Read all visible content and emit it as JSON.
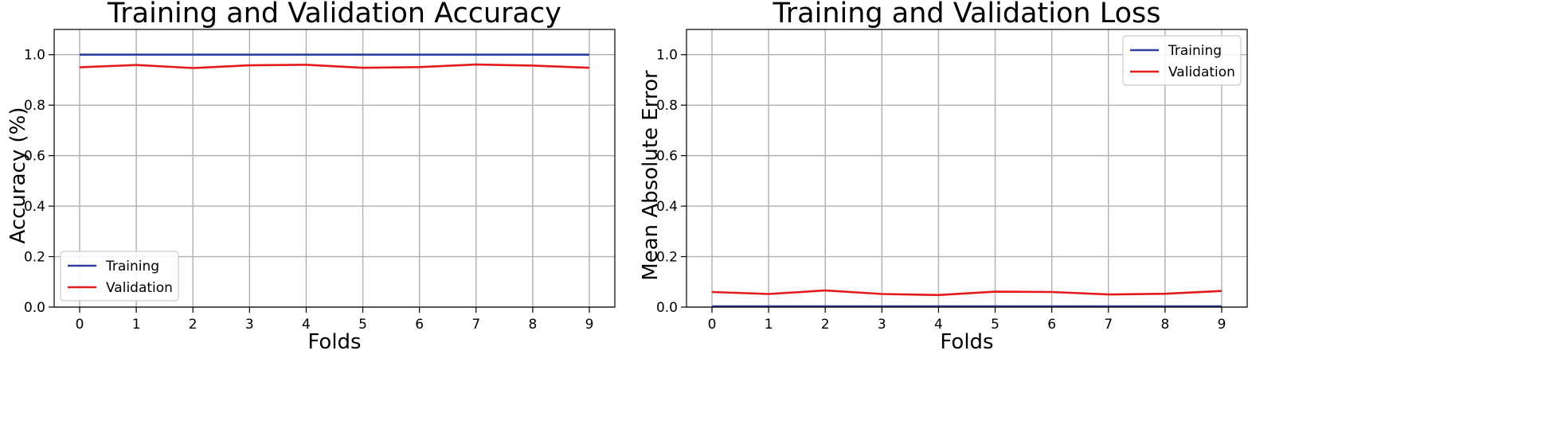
{
  "colors": {
    "training": "#2f3fa0",
    "validation": "#e41a1c"
  },
  "chart_data": [
    {
      "type": "line",
      "title": "Training and Validation Accuracy",
      "xlabel": "Folds",
      "ylabel": "Accuracy (%)",
      "x": [
        0,
        1,
        2,
        3,
        4,
        5,
        6,
        7,
        8,
        9
      ],
      "xlim": [
        -0.45,
        9.45
      ],
      "ylim": [
        0,
        1.1
      ],
      "xticks": [
        0,
        1,
        2,
        3,
        4,
        5,
        6,
        7,
        8,
        9
      ],
      "yticks": [
        "0.0",
        "0.2",
        "0.4",
        "0.6",
        "0.8",
        "1.0"
      ],
      "grid": true,
      "legend": "lower-left",
      "series": [
        {
          "name": "Training",
          "color": "#2f3fa0",
          "values": [
            1.0,
            1.0,
            1.0,
            1.0,
            1.0,
            1.0,
            1.0,
            1.0,
            1.0,
            1.0
          ]
        },
        {
          "name": "Validation",
          "color": "#e41a1c",
          "values": [
            0.95,
            0.959,
            0.947,
            0.958,
            0.96,
            0.948,
            0.951,
            0.961,
            0.957,
            0.948
          ]
        }
      ]
    },
    {
      "type": "line",
      "title": "Training and Validation Loss",
      "xlabel": "Folds",
      "ylabel": "Mean Absolute Error",
      "x": [
        0,
        1,
        2,
        3,
        4,
        5,
        6,
        7,
        8,
        9
      ],
      "xlim": [
        -0.45,
        9.45
      ],
      "ylim": [
        0,
        1.1
      ],
      "xticks": [
        0,
        1,
        2,
        3,
        4,
        5,
        6,
        7,
        8,
        9
      ],
      "yticks": [
        "0.0",
        "0.2",
        "0.4",
        "0.6",
        "0.8",
        "1.0"
      ],
      "grid": true,
      "legend": "upper-right",
      "series": [
        {
          "name": "Training",
          "color": "#2f3fa0",
          "values": [
            0.003,
            0.003,
            0.003,
            0.003,
            0.003,
            0.003,
            0.003,
            0.003,
            0.003,
            0.003
          ]
        },
        {
          "name": "Validation",
          "color": "#e41a1c",
          "values": [
            0.06,
            0.052,
            0.066,
            0.052,
            0.048,
            0.061,
            0.06,
            0.05,
            0.053,
            0.064
          ]
        }
      ]
    }
  ]
}
